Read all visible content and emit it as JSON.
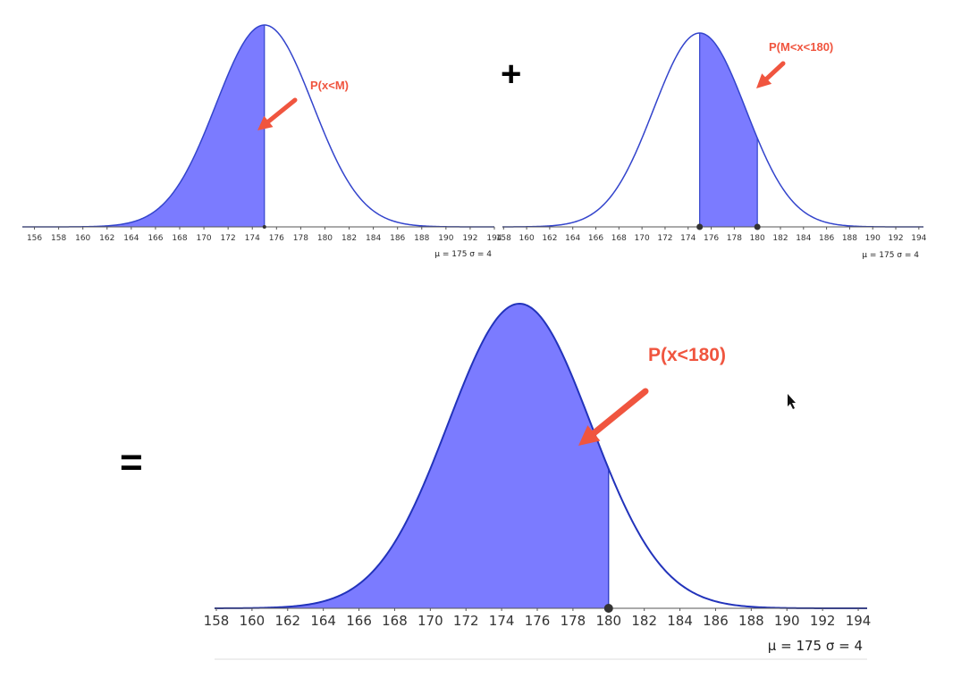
{
  "operators": {
    "plus": "+",
    "equals": "="
  },
  "chart_data": [
    {
      "type": "area",
      "distribution": "normal",
      "mu": 175,
      "sigma": 4,
      "params_text": {
        "mu": "μ = 175",
        "sigma": "σ = 4"
      },
      "shaded_from": null,
      "shaded_to": 175,
      "annotation": "P(x<M)",
      "xlim": [
        155,
        194
      ],
      "ticks": [
        156,
        158,
        160,
        162,
        164,
        166,
        168,
        170,
        172,
        174,
        176,
        178,
        180,
        182,
        184,
        186,
        188,
        190,
        192,
        194
      ],
      "colors": {
        "curve": "#3344cc",
        "fill": "#7b7bff"
      }
    },
    {
      "type": "area",
      "distribution": "normal",
      "mu": 175,
      "sigma": 4,
      "params_text": {
        "mu": "μ = 175",
        "sigma": "σ = 4"
      },
      "shaded_from": 175,
      "shaded_to": 180,
      "annotation": "P(M<x<180)",
      "xlim": [
        157.9,
        194.4
      ],
      "ticks": [
        158,
        160,
        162,
        164,
        166,
        168,
        170,
        172,
        174,
        176,
        178,
        180,
        182,
        184,
        186,
        188,
        190,
        192,
        194
      ],
      "colors": {
        "curve": "#3344cc",
        "fill": "#7b7bff"
      }
    },
    {
      "type": "area",
      "distribution": "normal",
      "mu": 175,
      "sigma": 4,
      "params_text": {
        "mu": "μ = 175",
        "sigma": "σ = 4"
      },
      "shaded_from": null,
      "shaded_to": 180,
      "annotation": "P(x<180)",
      "xlim": [
        157.9,
        194.5
      ],
      "ticks": [
        158,
        160,
        162,
        164,
        166,
        168,
        170,
        172,
        174,
        176,
        178,
        180,
        182,
        184,
        186,
        188,
        190,
        192,
        194
      ],
      "colors": {
        "curve": "#2233bb",
        "fill": "#7b7bff"
      }
    }
  ]
}
